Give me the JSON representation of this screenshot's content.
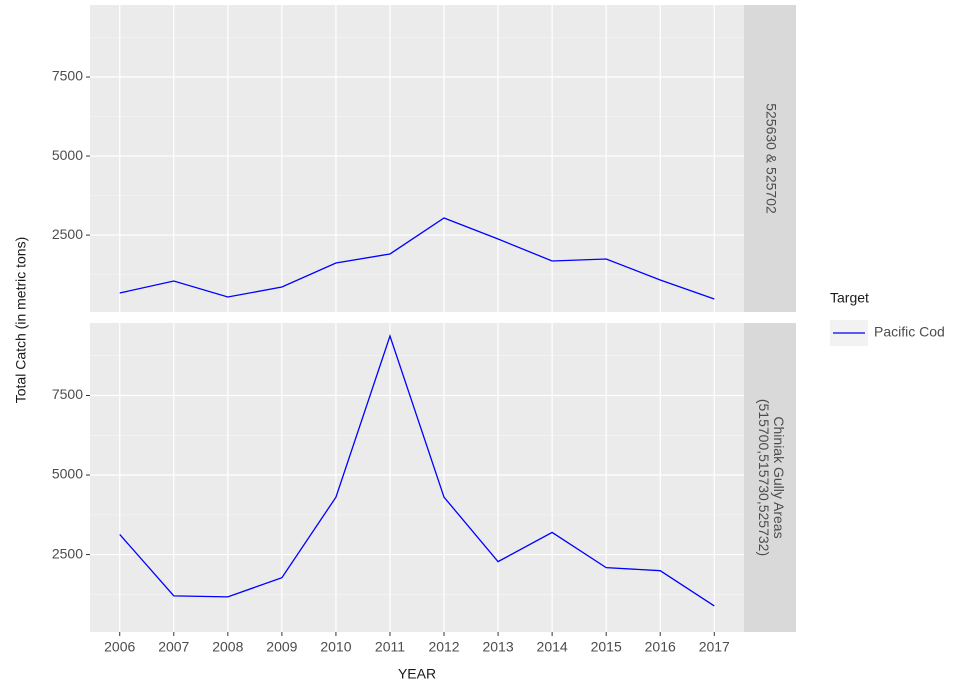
{
  "chart_data": {
    "type": "line",
    "x_label": "YEAR",
    "y_label": "Total Catch (in metric tons)",
    "x": [
      2006,
      2007,
      2008,
      2009,
      2010,
      2011,
      2012,
      2013,
      2014,
      2015,
      2016,
      2017
    ],
    "xlim": [
      2005.45,
      2017.55
    ],
    "ylim": [
      66,
      9779
    ],
    "yticks": [
      2500,
      5000,
      7500
    ],
    "minor_yticks": [
      1250,
      3750,
      6250,
      8750
    ],
    "grid": true,
    "legend_title": "Target",
    "series": [
      {
        "name": "Pacific Cod",
        "color": "#0000ff"
      }
    ],
    "facets": [
      {
        "label": [
          "525630 & 525702"
        ],
        "values": [
          667,
          1047,
          540,
          857,
          1617,
          1902,
          3041,
          2376,
          1680,
          1743,
          1079,
          477
        ]
      },
      {
        "label": [
          "Chiniak Gully Areas",
          "(515700,515730,525732)"
        ],
        "values": [
          3133,
          1202,
          1170,
          1772,
          4304,
          9368,
          4304,
          2278,
          3196,
          2089,
          1994,
          886
        ]
      }
    ]
  }
}
